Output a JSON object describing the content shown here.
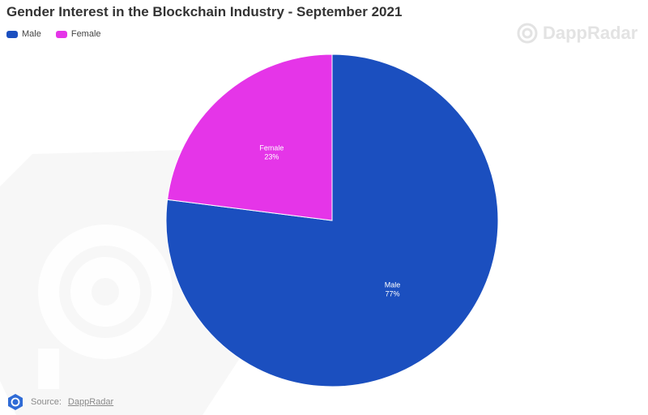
{
  "chart_data": {
    "type": "pie",
    "title": "Gender Interest in the Blockchain Industry - September 2021",
    "slices": [
      {
        "name": "Male",
        "value": 77,
        "label": "77%",
        "color": "#1b4fbf"
      },
      {
        "name": "Female",
        "value": 23,
        "label": "23%",
        "color": "#e535e8"
      }
    ],
    "legend_position": "top-left"
  },
  "legend": [
    "Male",
    "Female"
  ],
  "watermark": {
    "brand": "DappRadar"
  },
  "source": {
    "prefix": "Source:",
    "link_text": "DappRadar"
  },
  "icons": {
    "watermark": "dappradar-logo-icon",
    "source": "dappradar-badge-icon"
  }
}
